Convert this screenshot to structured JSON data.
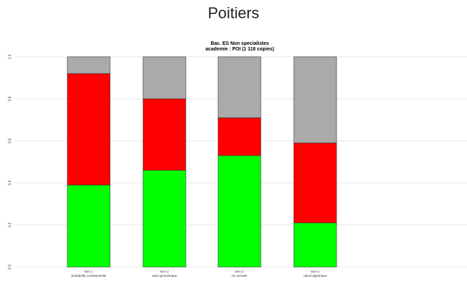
{
  "page": {
    "title": "Poitiers"
  },
  "chart_data": {
    "type": "bar",
    "stacked": true,
    "title": [
      "Bac. ES Non specialistes",
      "academie : POI (1 118 copies)"
    ],
    "categories": [
      [
        "item 1",
        "probabilite conditionnelle"
      ],
      [
        "item 2",
        "suite geometrique"
      ],
      [
        "item 3",
        "loi normale"
      ],
      [
        "item 4",
        "calcul algebrique"
      ]
    ],
    "series": [
      {
        "color": "#00ff00",
        "values": [
          0.39,
          0.46,
          0.53,
          0.21
        ]
      },
      {
        "color": "#ff0000",
        "values": [
          0.53,
          0.34,
          0.18,
          0.38
        ]
      },
      {
        "color": "#aaaaaa",
        "values": [
          0.08,
          0.2,
          0.29,
          0.41
        ]
      }
    ],
    "yticks": [
      "0.0",
      "0.2",
      "0.4",
      "0.6",
      "0.8",
      "1.0"
    ],
    "ylim": [
      0,
      1
    ],
    "grid": true,
    "xlabel": "",
    "ylabel": ""
  }
}
